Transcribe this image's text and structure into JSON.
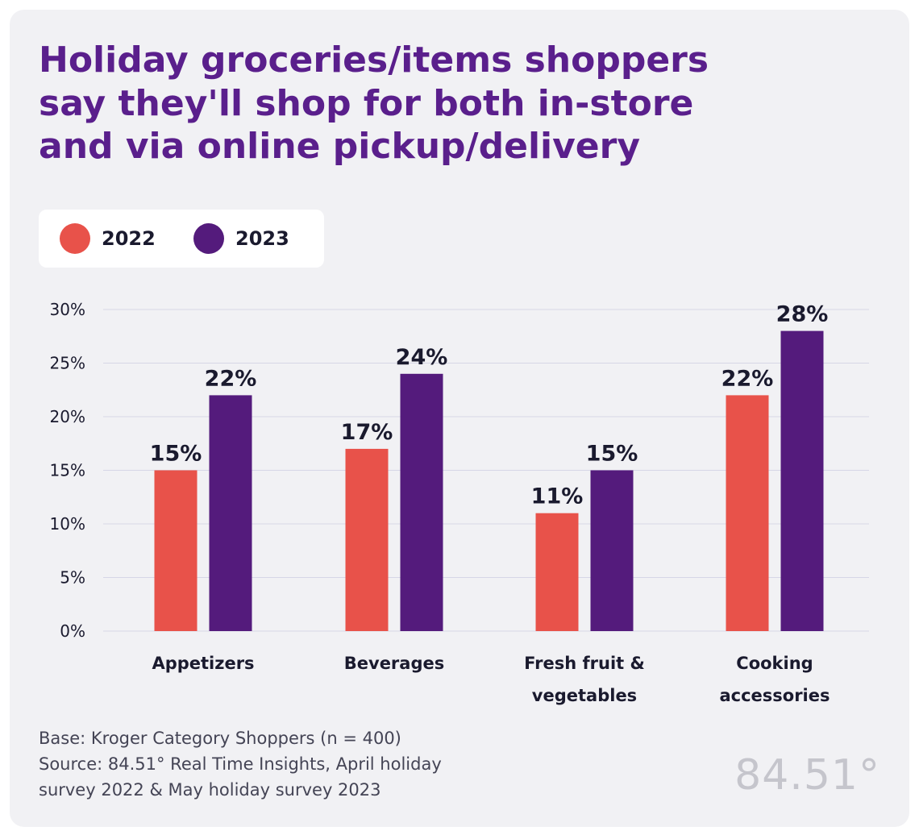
{
  "title_lines": [
    "Holiday groceries/items shoppers",
    "say they'll shop for both in-store",
    "and via online pickup/delivery"
  ],
  "legend": [
    {
      "label": "2022",
      "color": "#e8524a"
    },
    {
      "label": "2023",
      "color": "#541b7c"
    }
  ],
  "chart_data": {
    "type": "bar",
    "categories": [
      [
        "Appetizers"
      ],
      [
        "Beverages"
      ],
      [
        "Fresh fruit &",
        "vegetables"
      ],
      [
        "Cooking",
        "accessories"
      ]
    ],
    "series": [
      {
        "name": "2022",
        "color": "#e8524a",
        "values": [
          15,
          17,
          11,
          22
        ],
        "labels": [
          "15%",
          "17%",
          "11%",
          "22%"
        ]
      },
      {
        "name": "2023",
        "color": "#541b7c",
        "values": [
          22,
          24,
          15,
          28
        ],
        "labels": [
          "22%",
          "24%",
          "15%",
          "28%"
        ]
      }
    ],
    "ylim": [
      0,
      30
    ],
    "yticks": [
      0,
      5,
      10,
      15,
      20,
      25,
      30
    ],
    "ytick_labels": [
      "0%",
      "5%",
      "10%",
      "15%",
      "20%",
      "25%",
      "30%"
    ],
    "grid": true,
    "legend_position": "top-left"
  },
  "footnote_lines": [
    "Base: Kroger Category Shoppers (n = 400)",
    "Source: 84.51° Real Time Insights, April holiday",
    "survey 2022 & May holiday survey 2023"
  ],
  "logo_text": "84.51°"
}
